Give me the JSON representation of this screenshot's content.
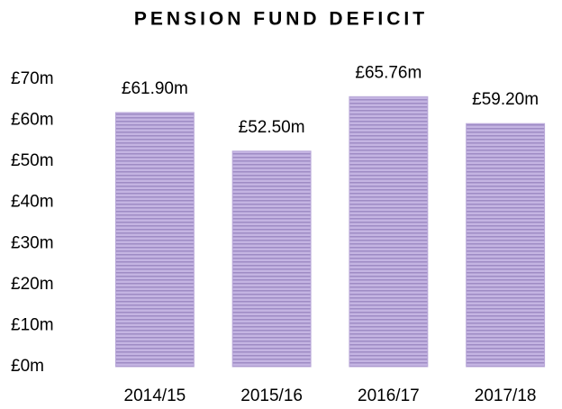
{
  "chart_data": {
    "type": "bar",
    "title": "PENSION FUND DEFICIT",
    "categories": [
      "2014/15",
      "2015/16",
      "2016/17",
      "2017/18"
    ],
    "values": [
      61.9,
      52.5,
      65.76,
      59.2
    ],
    "value_labels": [
      "£61.90m",
      "£52.50m",
      "£65.76m",
      "£59.20m"
    ],
    "color": "#b9a8d8",
    "ylim": [
      0,
      70
    ],
    "yticks": [
      {
        "value": 0,
        "label": "£0m"
      },
      {
        "value": 10,
        "label": "£10m"
      },
      {
        "value": 20,
        "label": "£20m"
      },
      {
        "value": 30,
        "label": "£30m"
      },
      {
        "value": 40,
        "label": "£40m"
      },
      {
        "value": 50,
        "label": "£50m"
      },
      {
        "value": 60,
        "label": "£60m"
      },
      {
        "value": 70,
        "label": "£70m"
      }
    ],
    "grid": false
  }
}
